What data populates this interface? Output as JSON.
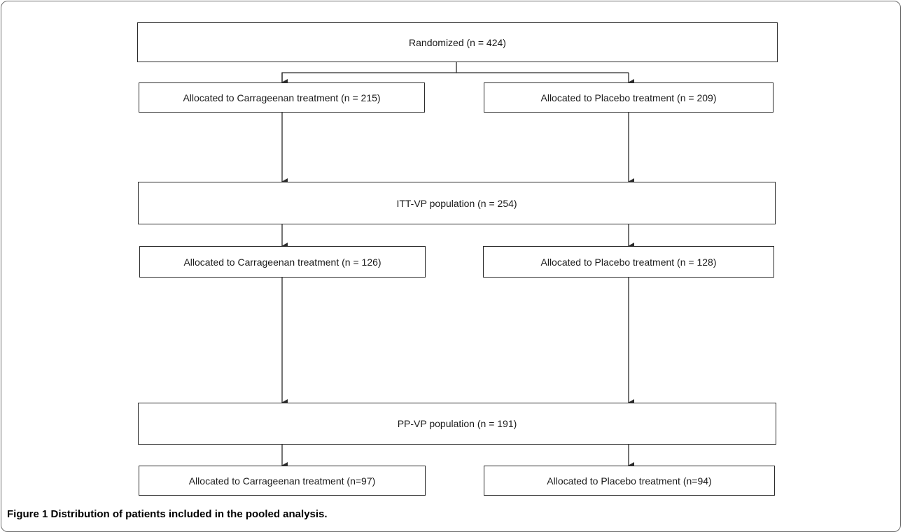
{
  "boxes": {
    "randomized": "Randomized (n = 424)",
    "alloc_carr_1": "Allocated to Carrageenan treatment (n = 215)",
    "alloc_plac_1": "Allocated to Placebo treatment (n = 209)",
    "itt_vp": "ITT-VP population (n = 254)",
    "alloc_carr_2": "Allocated to Carrageenan treatment (n = 126)",
    "alloc_plac_2": "Allocated to Placebo treatment (n = 128)",
    "pp_vp": "PP-VP population (n = 191)",
    "alloc_carr_3": "Allocated to Carrageenan treatment (n=97)",
    "alloc_plac_3": "Allocated to Placebo treatment (n=94)"
  },
  "caption": {
    "label": "Figure 1",
    "text": " Distribution of patients included in the pooled analysis."
  },
  "colors": {
    "line": "#2b2b2b",
    "frame": "#6b6b6b"
  }
}
